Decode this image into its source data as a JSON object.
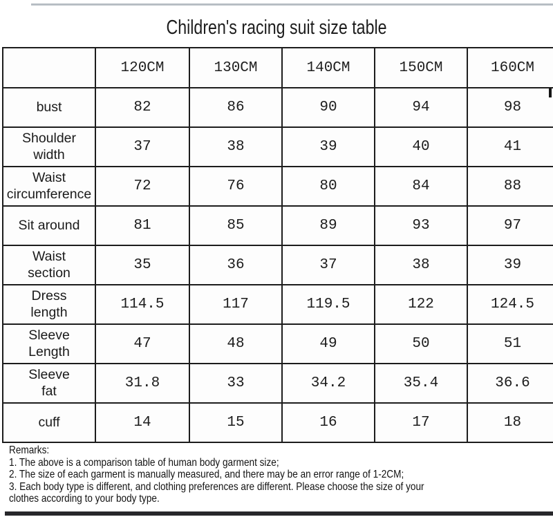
{
  "title": "Children's racing suit size table",
  "table": {
    "columns": [
      "",
      "120CM",
      "130CM",
      "140CM",
      "150CM",
      "160CM"
    ],
    "rows": [
      {
        "label": "bust",
        "values": [
          "82",
          "86",
          "90",
          "94",
          "98"
        ]
      },
      {
        "label": "Shoulder\nwidth",
        "values": [
          "37",
          "38",
          "39",
          "40",
          "41"
        ]
      },
      {
        "label": "Waist\ncircumference",
        "values": [
          "72",
          "76",
          "80",
          "84",
          "88"
        ]
      },
      {
        "label": "Sit around",
        "values": [
          "81",
          "85",
          "89",
          "93",
          "97"
        ]
      },
      {
        "label": "Waist\nsection",
        "values": [
          "35",
          "36",
          "37",
          "38",
          "39"
        ]
      },
      {
        "label": "Dress\nlength",
        "values": [
          "114.5",
          "117",
          "119.5",
          "122",
          "124.5"
        ]
      },
      {
        "label": "Sleeve\nLength",
        "values": [
          "47",
          "48",
          "49",
          "50",
          "51"
        ]
      },
      {
        "label": "Sleeve\nfat",
        "values": [
          "31.8",
          "33",
          "34.2",
          "35.4",
          "36.6"
        ]
      },
      {
        "label": "cuff",
        "values": [
          "14",
          "15",
          "16",
          "17",
          "18"
        ]
      }
    ]
  },
  "remarks": {
    "heading": "Remarks:",
    "lines": [
      "1. The above is a comparison table of human body garment size;",
      "2. The size of each garment is manually measured, and there may be an error range of 1-2CM;",
      "3. Each body type is different, and clothing preferences are different. Please choose the size of your",
      "clothes according to your body type."
    ]
  },
  "colors": {
    "text": "#1c1c1c",
    "table_border": "#1c1c1c",
    "top_line": "#b7bec4",
    "bottom_bar": "#27272b",
    "background": "#ffffff"
  }
}
